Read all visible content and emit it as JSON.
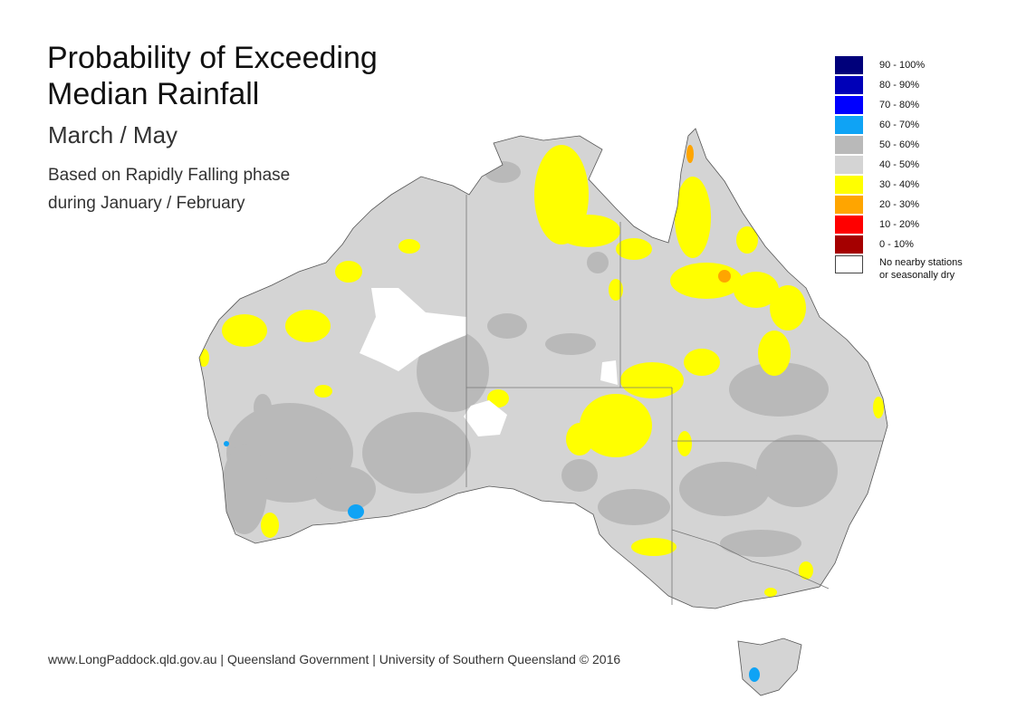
{
  "title_line1": "Probability of Exceeding",
  "title_line2": "Median Rainfall",
  "subtitle": "March / May",
  "note_line1": "Based on Rapidly Falling phase",
  "note_line2": "during January / February",
  "legend": {
    "items": [
      {
        "label": "90 - 100%",
        "color": "#00007a"
      },
      {
        "label": "80 - 90%",
        "color": "#0000b8"
      },
      {
        "label": "70 - 80%",
        "color": "#0000ff"
      },
      {
        "label": "60 - 70%",
        "color": "#0fa3f5"
      },
      {
        "label": "50 - 60%",
        "color": "#b9b9b9"
      },
      {
        "label": "40 - 50%",
        "color": "#d4d4d4"
      },
      {
        "label": "30 - 40%",
        "color": "#ffff00"
      },
      {
        "label": "20 - 30%",
        "color": "#ffa500"
      },
      {
        "label": "10 - 20%",
        "color": "#ff0000"
      },
      {
        "label": "0 - 10%",
        "color": "#a50000"
      }
    ],
    "nodata_line1": "No nearby stations",
    "nodata_line2": "or seasonally dry",
    "nodata_color": "#ffffff"
  },
  "footer": "www.LongPaddock.qld.gov.au | Queensland Government | University of Southern Queensland © 2016",
  "map": {
    "region": "Australia",
    "base_color": "#d4d4d4",
    "border_color": "#666666",
    "nodata_color": "#ffffff"
  }
}
